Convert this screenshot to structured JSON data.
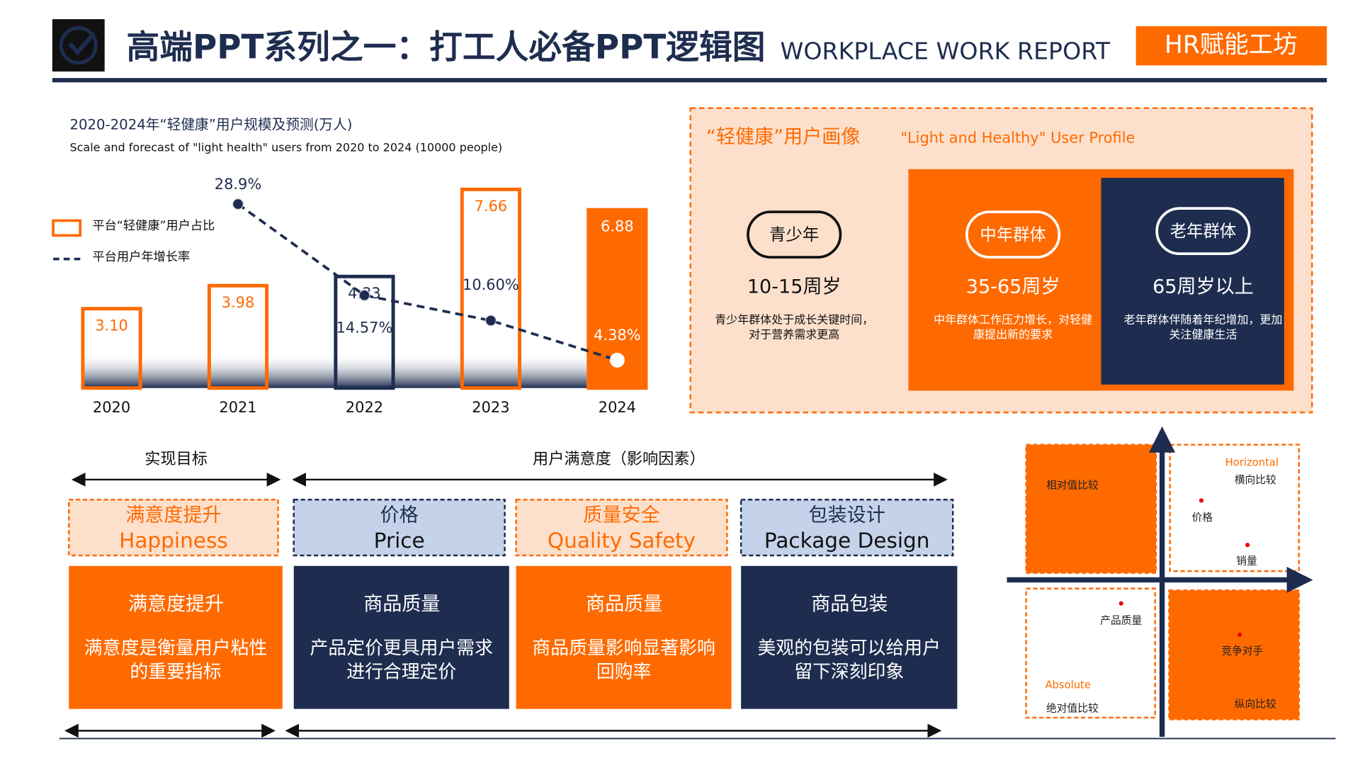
{
  "header": {
    "title": "高端PPT系列之一：打工人必备PPT逻辑图",
    "subtitle": "WORKPLACE WORK REPORT",
    "brand": "HR赋能工坊"
  },
  "chart_data": {
    "type": "bar",
    "title": "2020-2024年“轻健康”用户规模及预测(万人)",
    "subtitle": "Scale and forecast of \"light health\" users from 2020 to 2024 (10000 people)",
    "categories": [
      "2020",
      "2021",
      "2022",
      "2023",
      "2024"
    ],
    "series": [
      {
        "name": "平台“轻健康”用户占比",
        "color": "#ff6a00",
        "colors": [
          "#ff6a00",
          "#ff6a00",
          "#1e2d4f",
          "#ff6a00",
          "#ff6a00"
        ],
        "fills": [
          "none",
          "none",
          "none",
          "none",
          "#ff6a00"
        ],
        "values": [
          3.1,
          3.98,
          4.33,
          7.66,
          6.88
        ],
        "value_labels": [
          "3.10",
          "3.98",
          "4.33",
          "7.66",
          "6.88"
        ]
      },
      {
        "name": "平台用户年增长率",
        "type": "line",
        "color": "#1e2d4f",
        "values": [
          null,
          28.9,
          14.57,
          10.6,
          4.38
        ],
        "value_labels": [
          null,
          "28.9%",
          "14.57%",
          "10.60%",
          "4.38%"
        ]
      }
    ]
  },
  "profile": {
    "title": "“轻健康”用户画像",
    "title_en": "\"Light and Healthy\" User Profile",
    "groups": [
      {
        "label": "青少年",
        "age": "10-15周岁",
        "desc": "青少年群体处于成长关键时间，对于营养需求更高"
      },
      {
        "label": "中年群体",
        "age": "35-65周岁",
        "desc": "中年群体工作压力增长，对轻健康提出新的要求"
      },
      {
        "label": "老年群体",
        "age": "65周岁以上",
        "desc": "老年群体伴随着年纪增加，更加关注健康生活"
      }
    ]
  },
  "factors": {
    "goal_label": "实现目标",
    "satisfaction_label": "用户满意度（影响因素）",
    "items": [
      {
        "title": "满意度提升",
        "title_en": "Happiness",
        "head": "满意度提升",
        "body": "满意度是衡量用户粘性的重要指标"
      },
      {
        "title": "价格",
        "title_en": "Price",
        "head": "商品质量",
        "body": "产品定价更具用户需求进行合理定价"
      },
      {
        "title": "质量安全",
        "title_en": "Quality  Safety",
        "head": "商品质量",
        "body": "商品质量影响显著影响回购率"
      },
      {
        "title": "包装设计",
        "title_en": "Package Design",
        "head": "商品包装",
        "body": "美观的包装可以给用户留下深刻印象"
      }
    ]
  },
  "quadrant": {
    "q1": "相对值比较",
    "q2_en": "Horizontal",
    "q2": "横向比较",
    "price": "价格",
    "sales": "销量",
    "quality": "产品质量",
    "q3_en": "Absolute",
    "q3": "绝对值比较",
    "competitor": "竞争对手",
    "q4": "纵向比较"
  }
}
